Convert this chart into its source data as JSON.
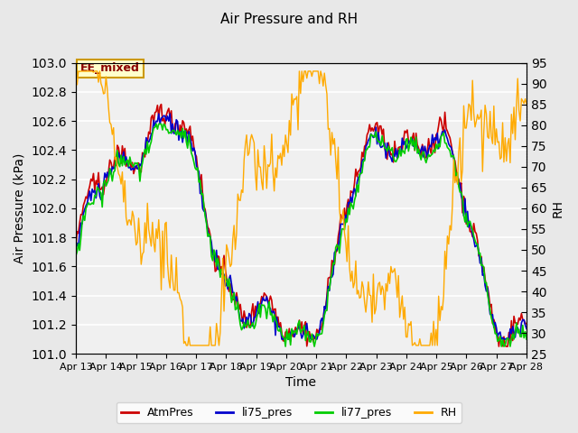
{
  "title": "Air Pressure and RH",
  "xlabel": "Time",
  "ylabel_left": "Air Pressure (kPa)",
  "ylabel_right": "RH",
  "annotation": "EE_mixed",
  "ylim_left": [
    101.0,
    103.0
  ],
  "ylim_right": [
    25,
    95
  ],
  "yticks_left": [
    101.0,
    101.2,
    101.4,
    101.6,
    101.8,
    102.0,
    102.2,
    102.4,
    102.6,
    102.8,
    103.0
  ],
  "yticks_right": [
    25,
    30,
    35,
    40,
    45,
    50,
    55,
    60,
    65,
    70,
    75,
    80,
    85,
    90,
    95
  ],
  "xtick_labels": [
    "Apr 13",
    "Apr 14",
    "Apr 15",
    "Apr 16",
    "Apr 17",
    "Apr 18",
    "Apr 19",
    "Apr 20",
    "Apr 21",
    "Apr 22",
    "Apr 23",
    "Apr 24",
    "Apr 25",
    "Apr 26",
    "Apr 27",
    "Apr 28"
  ],
  "series_colors": {
    "AtmPres": "#cc0000",
    "li75_pres": "#0000cc",
    "li77_pres": "#00cc00",
    "RH": "#ffaa00"
  },
  "background_color": "#e8e8e8",
  "plot_bg_color": "#f0f0f0",
  "grid_color": "#ffffff",
  "annotation_bg": "#ffffcc",
  "annotation_border": "#cc9900"
}
